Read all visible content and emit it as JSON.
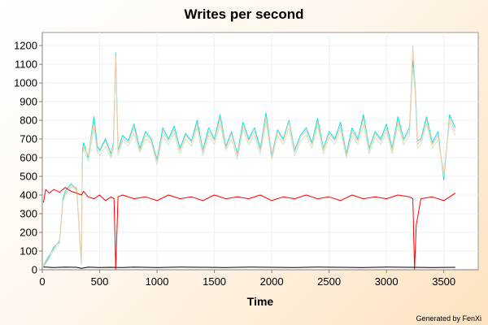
{
  "chart_data": {
    "type": "line",
    "title": "Writes per second",
    "xlabel": "Time",
    "ylabel": "",
    "xlim": [
      0,
      3800
    ],
    "ylim": [
      0,
      1270
    ],
    "xticks": [
      0,
      500,
      1000,
      1500,
      2000,
      2500,
      3000,
      3500
    ],
    "yticks": [
      0,
      100,
      200,
      300,
      400,
      500,
      600,
      700,
      800,
      900,
      1000,
      1100,
      1200
    ],
    "grid": true,
    "legend": "none",
    "footer": "Generated by FenXi",
    "series": [
      {
        "color": "#00e5e5",
        "x": [
          10,
          50,
          100,
          150,
          180,
          200,
          250,
          300,
          340,
          350,
          360,
          400,
          450,
          480,
          500,
          550,
          600,
          620,
          640,
          660,
          700,
          750,
          800,
          850,
          900,
          950,
          1000,
          1050,
          1100,
          1150,
          1200,
          1250,
          1300,
          1350,
          1400,
          1450,
          1500,
          1550,
          1600,
          1650,
          1700,
          1750,
          1800,
          1850,
          1900,
          1950,
          2000,
          2050,
          2100,
          2150,
          2200,
          2250,
          2300,
          2350,
          2400,
          2450,
          2500,
          2550,
          2600,
          2650,
          2700,
          2750,
          2800,
          2850,
          2900,
          2950,
          3000,
          3050,
          3100,
          3150,
          3200,
          3230,
          3250,
          3270,
          3300,
          3350,
          3400,
          3450,
          3500,
          3550,
          3600
        ],
        "y": [
          20,
          60,
          120,
          150,
          380,
          420,
          460,
          430,
          30,
          640,
          680,
          600,
          820,
          660,
          640,
          700,
          620,
          680,
          1160,
          640,
          720,
          690,
          780,
          650,
          740,
          700,
          590,
          760,
          700,
          770,
          650,
          730,
          690,
          800,
          640,
          760,
          700,
          830,
          660,
          740,
          620,
          790,
          700,
          760,
          650,
          840,
          610,
          750,
          700,
          800,
          640,
          720,
          760,
          680,
          810,
          650,
          740,
          700,
          790,
          620,
          760,
          700,
          830,
          650,
          740,
          700,
          780,
          650,
          820,
          700,
          760,
          1120,
          1000,
          690,
          700,
          820,
          680,
          740,
          480,
          830,
          760
        ]
      },
      {
        "color": "#c8e8c8",
        "x": [
          10,
          50,
          100,
          150,
          180,
          200,
          250,
          300,
          340,
          350,
          360,
          400,
          450,
          480,
          500,
          550,
          600,
          620,
          640,
          660,
          700,
          750,
          800,
          850,
          900,
          950,
          1000,
          1050,
          1100,
          1150,
          1200,
          1250,
          1300,
          1350,
          1400,
          1450,
          1500,
          1550,
          1600,
          1650,
          1700,
          1750,
          1800,
          1850,
          1900,
          1950,
          2000,
          2050,
          2100,
          2150,
          2200,
          2250,
          2300,
          2350,
          2400,
          2450,
          2500,
          2550,
          2600,
          2650,
          2700,
          2750,
          2800,
          2850,
          2900,
          2950,
          3000,
          3050,
          3100,
          3150,
          3200,
          3230,
          3250,
          3270,
          3300,
          3350,
          3400,
          3450,
          3500,
          3550,
          3600
        ],
        "y": [
          15,
          50,
          100,
          140,
          360,
          400,
          450,
          420,
          25,
          610,
          650,
          580,
          760,
          630,
          610,
          660,
          600,
          650,
          1140,
          610,
          690,
          660,
          730,
          630,
          700,
          680,
          560,
          720,
          670,
          730,
          620,
          700,
          660,
          760,
          610,
          720,
          670,
          780,
          640,
          700,
          590,
          750,
          670,
          720,
          620,
          790,
          590,
          720,
          670,
          760,
          610,
          690,
          720,
          650,
          770,
          620,
          710,
          670,
          750,
          600,
          720,
          670,
          780,
          620,
          710,
          670,
          740,
          620,
          780,
          670,
          720,
          1080,
          950,
          650,
          670,
          780,
          650,
          700,
          520,
          790,
          720
        ]
      },
      {
        "color": "#f5c8a8",
        "x": [
          10,
          50,
          100,
          150,
          180,
          200,
          250,
          300,
          340,
          350,
          360,
          400,
          450,
          480,
          500,
          550,
          600,
          620,
          640,
          660,
          700,
          750,
          800,
          850,
          900,
          950,
          1000,
          1050,
          1100,
          1150,
          1200,
          1250,
          1300,
          1350,
          1400,
          1450,
          1500,
          1550,
          1600,
          1650,
          1700,
          1750,
          1800,
          1850,
          1900,
          1950,
          2000,
          2050,
          2100,
          2150,
          2200,
          2250,
          2300,
          2350,
          2400,
          2450,
          2500,
          2550,
          2600,
          2650,
          2700,
          2750,
          2800,
          2850,
          2900,
          2950,
          3000,
          3050,
          3100,
          3150,
          3200,
          3230,
          3250,
          3270,
          3300,
          3350,
          3400,
          3450,
          3500,
          3550,
          3600
        ],
        "y": [
          25,
          70,
          110,
          160,
          370,
          410,
          440,
          440,
          35,
          620,
          660,
          610,
          790,
          640,
          630,
          690,
          610,
          670,
          1150,
          630,
          700,
          680,
          760,
          640,
          720,
          690,
          580,
          740,
          690,
          750,
          640,
          720,
          680,
          780,
          630,
          740,
          690,
          810,
          650,
          730,
          610,
          770,
          690,
          740,
          640,
          820,
          600,
          740,
          690,
          790,
          630,
          710,
          740,
          670,
          790,
          640,
          730,
          690,
          770,
          610,
          740,
          690,
          810,
          640,
          730,
          690,
          760,
          640,
          800,
          690,
          740,
          1200,
          980,
          670,
          690,
          800,
          670,
          720,
          500,
          810,
          740
        ]
      },
      {
        "color": "#ff0000",
        "x": [
          10,
          30,
          60,
          100,
          150,
          200,
          250,
          300,
          340,
          360,
          400,
          450,
          500,
          550,
          600,
          625,
          640,
          660,
          700,
          800,
          900,
          1000,
          1100,
          1200,
          1300,
          1400,
          1500,
          1600,
          1700,
          1800,
          1900,
          2000,
          2100,
          2200,
          2300,
          2400,
          2500,
          2600,
          2700,
          2800,
          2900,
          3000,
          3100,
          3200,
          3230,
          3245,
          3260,
          3300,
          3400,
          3500,
          3600
        ],
        "y": [
          360,
          430,
          410,
          430,
          415,
          440,
          420,
          410,
          400,
          420,
          390,
          380,
          400,
          370,
          390,
          380,
          0,
          390,
          400,
          380,
          390,
          370,
          400,
          380,
          390,
          370,
          400,
          380,
          390,
          380,
          400,
          370,
          390,
          380,
          400,
          380,
          390,
          370,
          400,
          380,
          390,
          380,
          400,
          390,
          380,
          0,
          240,
          380,
          390,
          370,
          410
        ]
      },
      {
        "color": "#000000",
        "x": [
          10,
          100,
          200,
          300,
          340,
          400,
          500,
          600,
          700,
          800,
          900,
          1000,
          1200,
          1400,
          1600,
          1800,
          2000,
          2200,
          2400,
          2600,
          2800,
          3000,
          3200,
          3400,
          3600
        ],
        "y": [
          15,
          12,
          14,
          13,
          8,
          14,
          12,
          13,
          12,
          14,
          13,
          12,
          14,
          13,
          12,
          14,
          13,
          12,
          14,
          13,
          12,
          14,
          13,
          12,
          13
        ]
      }
    ]
  }
}
